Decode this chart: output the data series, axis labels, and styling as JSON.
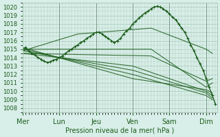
{
  "title": "Pression niveau de la mer( hPa )",
  "xlabel_days": [
    "Mer",
    "Lun",
    "Jeu",
    "Ven",
    "Sam",
    "Dim"
  ],
  "day_positions": [
    0,
    1,
    2,
    3,
    4,
    5
  ],
  "ylim": [
    1007.5,
    1020.5
  ],
  "yticks": [
    1008,
    1009,
    1010,
    1011,
    1012,
    1013,
    1014,
    1015,
    1016,
    1017,
    1018,
    1019,
    1020
  ],
  "bg_color": "#d8eee8",
  "grid_color": "#a8c8b8",
  "line_color": "#1a5c1a",
  "line_color2": "#2d7a2d",
  "series": [
    {
      "x": [
        0.0,
        0.08,
        0.17,
        0.25,
        0.33,
        0.42,
        0.5,
        0.58,
        0.67,
        0.75,
        0.83,
        0.92,
        1.0,
        1.08,
        1.17,
        1.25,
        1.33,
        1.42,
        1.5,
        1.58,
        1.67,
        1.75,
        1.83,
        1.92,
        2.0,
        2.08,
        2.17,
        2.25,
        2.33,
        2.42,
        2.5,
        2.58,
        2.67,
        2.75,
        2.83,
        2.92,
        3.0,
        3.08,
        3.17,
        3.25,
        3.33,
        3.42,
        3.5,
        3.58,
        3.67,
        3.75,
        3.83,
        3.92,
        4.0,
        4.08,
        4.17,
        4.25,
        4.33,
        4.42,
        4.5,
        4.58,
        4.67,
        4.75,
        4.83,
        4.92,
        5.0,
        5.08,
        5.17,
        5.25
      ],
      "y": [
        1015.0,
        1015.2,
        1014.8,
        1014.5,
        1014.3,
        1014.0,
        1013.8,
        1013.6,
        1013.4,
        1013.5,
        1013.7,
        1013.8,
        1014.0,
        1014.2,
        1014.5,
        1014.8,
        1015.0,
        1015.3,
        1015.5,
        1015.8,
        1016.0,
        1016.3,
        1016.5,
        1016.8,
        1017.0,
        1017.0,
        1016.8,
        1016.5,
        1016.3,
        1016.0,
        1015.8,
        1016.0,
        1016.3,
        1016.8,
        1017.2,
        1017.5,
        1018.0,
        1018.3,
        1018.7,
        1019.0,
        1019.3,
        1019.5,
        1019.8,
        1020.0,
        1020.1,
        1020.0,
        1019.8,
        1019.5,
        1019.2,
        1018.8,
        1018.5,
        1018.0,
        1017.5,
        1017.0,
        1016.3,
        1015.5,
        1014.8,
        1014.0,
        1013.3,
        1012.5,
        1011.5,
        1010.5,
        1009.5,
        1008.5
      ]
    },
    {
      "x": [
        0.0,
        3.0,
        5.0,
        5.17
      ],
      "y": [
        1014.5,
        1013.0,
        1010.0,
        1009.5
      ]
    },
    {
      "x": [
        0.0,
        3.0,
        5.0,
        5.17
      ],
      "y": [
        1014.8,
        1012.5,
        1009.8,
        1009.2
      ]
    },
    {
      "x": [
        0.0,
        3.0,
        5.0,
        5.17
      ],
      "y": [
        1015.0,
        1012.0,
        1009.5,
        1009.0
      ]
    },
    {
      "x": [
        0.0,
        3.0,
        5.0,
        5.17
      ],
      "y": [
        1015.2,
        1011.5,
        1010.2,
        1009.8
      ]
    },
    {
      "x": [
        0.0,
        3.5,
        5.0,
        5.17
      ],
      "y": [
        1015.0,
        1015.0,
        1010.5,
        1011.0
      ]
    },
    {
      "x": [
        0.0,
        3.5,
        5.0,
        5.17
      ],
      "y": [
        1014.5,
        1014.2,
        1011.2,
        1011.5
      ]
    },
    {
      "x": [
        0.0,
        1.5,
        3.5,
        5.0,
        5.17
      ],
      "y": [
        1014.8,
        1016.8,
        1017.5,
        1015.0,
        1014.5
      ]
    }
  ],
  "vlines": [
    0,
    1,
    2,
    3,
    4,
    5
  ],
  "xlim": [
    0,
    5.3
  ]
}
